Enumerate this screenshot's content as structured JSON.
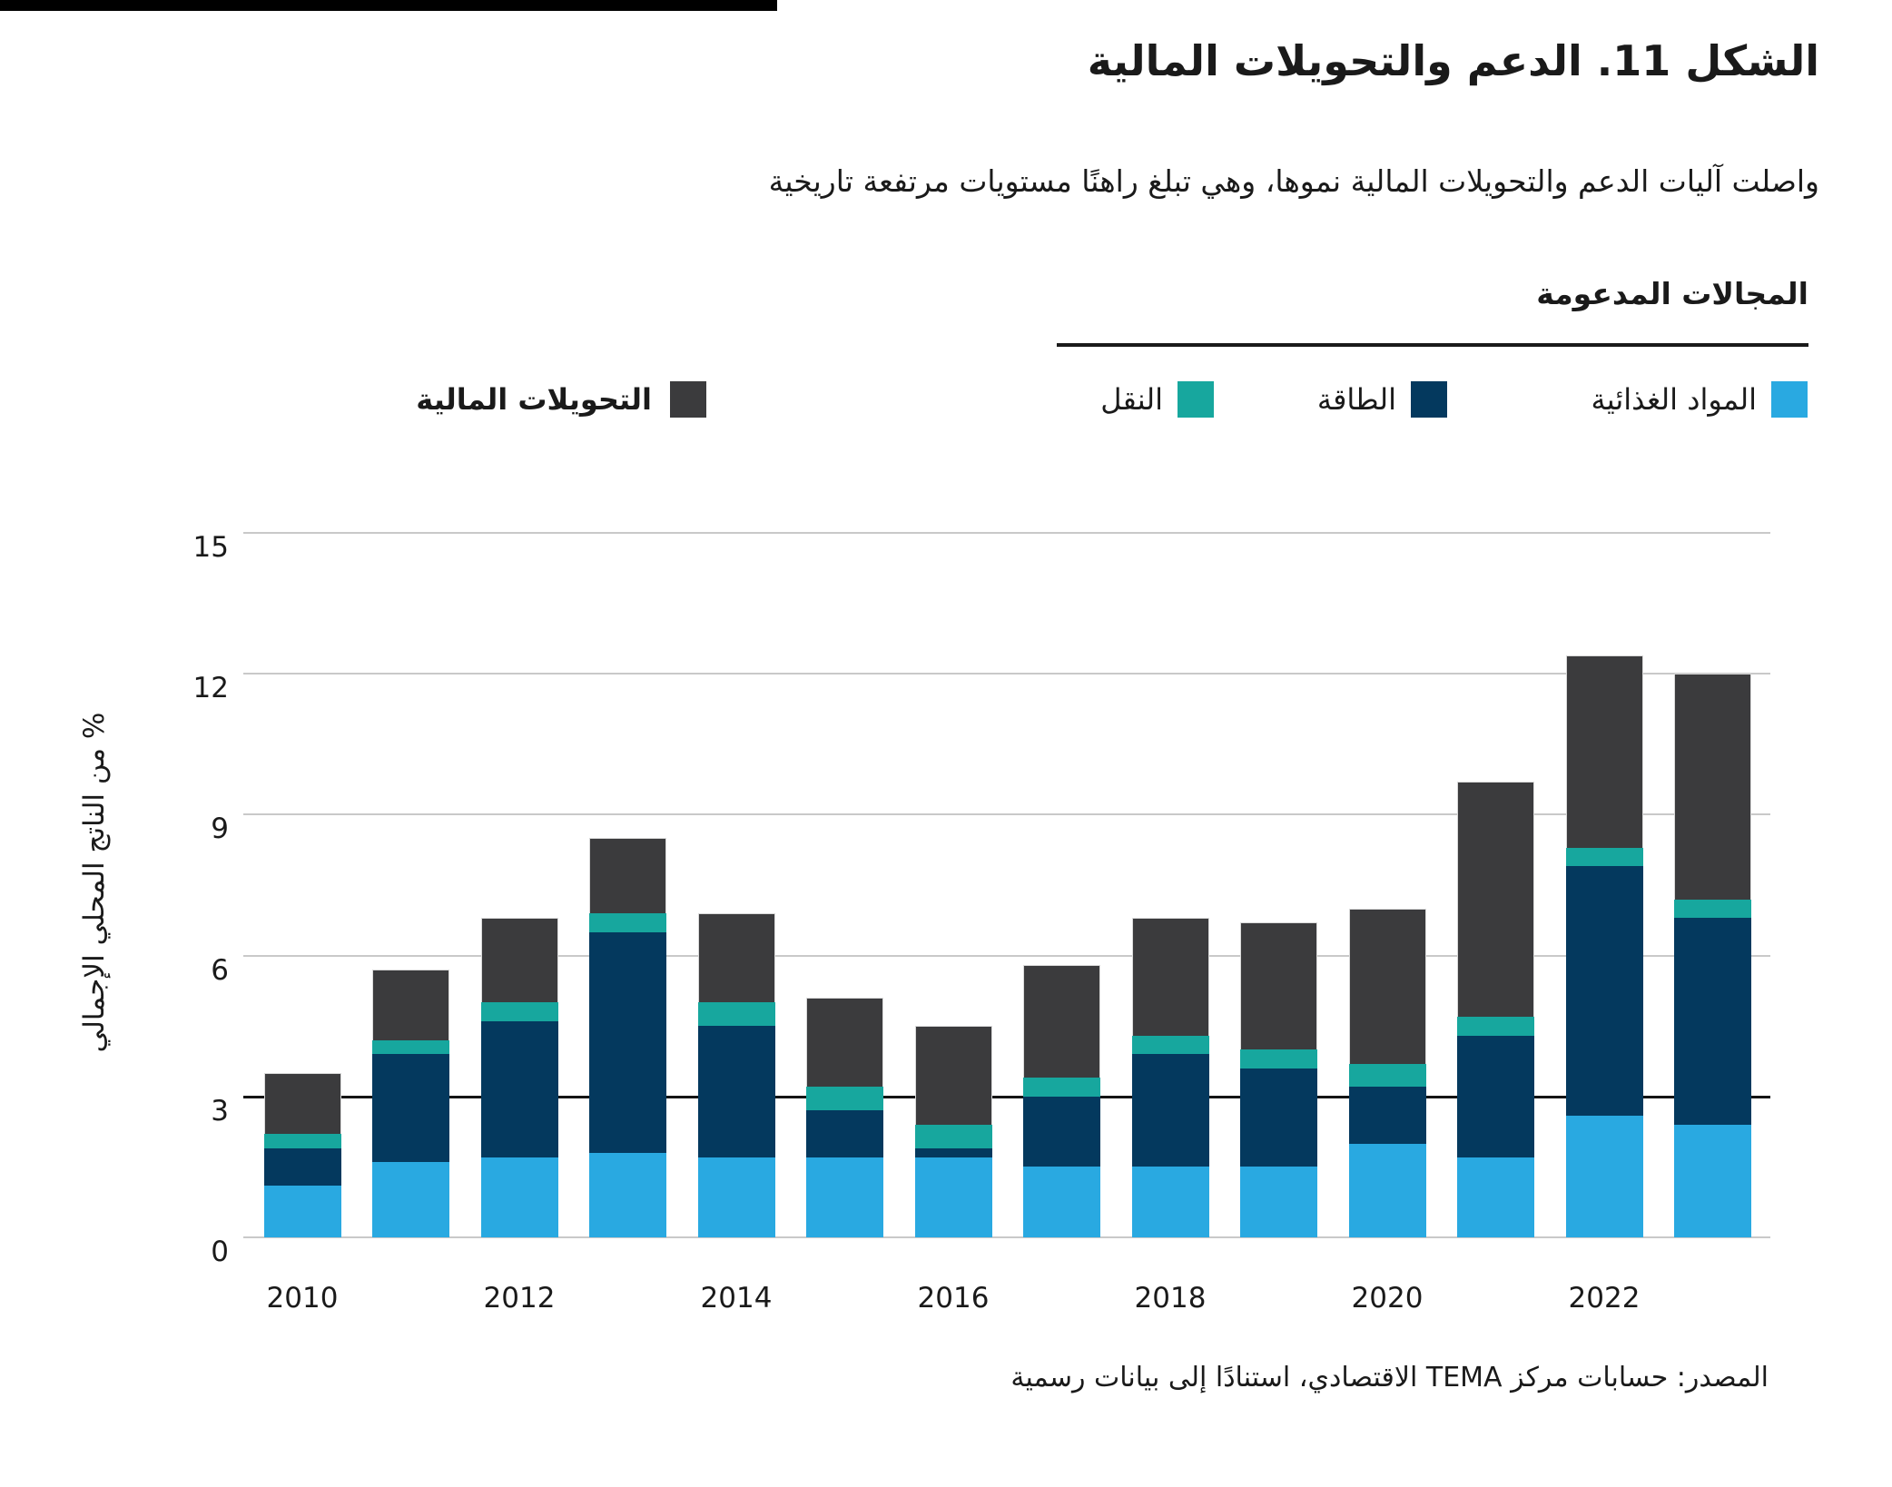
{
  "page": {
    "title": "الشكل 11. الدعم والتحويلات المالية",
    "subtitle": "واصلت آليات الدعم والتحويلات المالية نموها، وهي تبلغ راهنًا مستويات مرتفعة تاريخية",
    "source": "المصدر: حسابات مركز TEMA الاقتصادي، استنادًا إلى بيانات رسمية"
  },
  "legend": {
    "supported_header": "المجالات المدعومة",
    "items": [
      {
        "id": "food",
        "label": "المواد الغذائية",
        "color": "#29A9E1"
      },
      {
        "id": "energy",
        "label": "الطاقة",
        "color": "#04395E"
      },
      {
        "id": "transport",
        "label": "النقل",
        "color": "#17A79E"
      }
    ],
    "transfers": {
      "label": "التحويلات المالية",
      "color": "#3B3B3D"
    }
  },
  "colors": {
    "food": "#29A9E1",
    "energy": "#04395E",
    "transport": "#17A79E",
    "transfers": "#3B3B3D",
    "gridline": "#C9C9C9",
    "emphasized_gridline": "#141414",
    "text": "#1A1A1A"
  },
  "chart_data": {
    "type": "bar",
    "stacked": true,
    "title": "الشكل 11. الدعم والتحويلات المالية",
    "xlabel": "",
    "ylabel": "% من الناتج المحلي الإجمالي",
    "ylim": [
      0,
      15
    ],
    "yticks": [
      0,
      3,
      6,
      9,
      12,
      15
    ],
    "emphasized_gridline": 3,
    "grid": true,
    "legend_position": "top",
    "categories": [
      2010,
      2011,
      2012,
      2013,
      2014,
      2015,
      2016,
      2017,
      2018,
      2019,
      2020,
      2021,
      2022,
      2023
    ],
    "x_tick_labels": [
      "2010",
      "2012",
      "2014",
      "2016",
      "2018",
      "2020",
      "2022"
    ],
    "series": [
      {
        "name": "المواد الغذائية",
        "color": "#29A9E1",
        "values": [
          1.1,
          1.6,
          1.7,
          1.8,
          1.7,
          1.7,
          1.7,
          1.5,
          1.5,
          1.5,
          2.0,
          1.7,
          2.6,
          2.4
        ]
      },
      {
        "name": "الطاقة",
        "color": "#04395E",
        "values": [
          0.8,
          2.3,
          2.9,
          4.7,
          2.8,
          1.0,
          0.2,
          1.5,
          2.4,
          2.1,
          1.2,
          2.6,
          5.3,
          4.4
        ]
      },
      {
        "name": "النقل",
        "color": "#17A79E",
        "values": [
          0.3,
          0.3,
          0.4,
          0.4,
          0.5,
          0.5,
          0.5,
          0.4,
          0.4,
          0.4,
          0.5,
          0.4,
          0.4,
          0.4
        ]
      },
      {
        "name": "التحويلات المالية",
        "color": "#3B3B3D",
        "values": [
          1.3,
          1.5,
          1.8,
          1.6,
          1.9,
          1.9,
          2.1,
          2.4,
          2.5,
          2.7,
          3.3,
          5.0,
          4.1,
          4.8
        ]
      }
    ]
  }
}
